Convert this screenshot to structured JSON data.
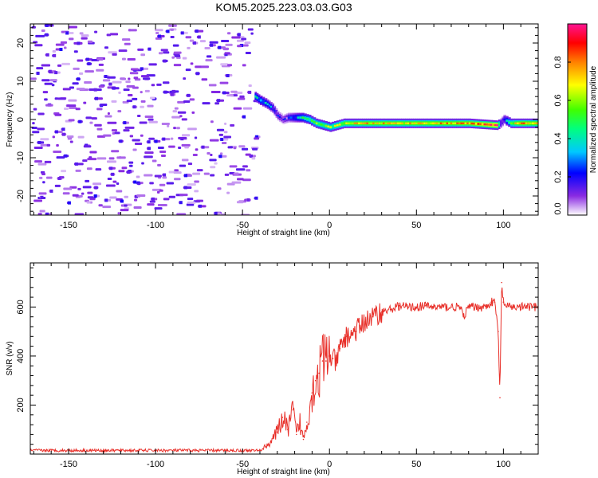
{
  "title": "KOM5.2025.223.03.03.G03",
  "chart_data": [
    {
      "type": "heatmap",
      "xlabel": "Height of straight line (km)",
      "ylabel": "Frequency (Hz)",
      "xlim": [
        -172,
        120
      ],
      "ylim": [
        -25,
        25
      ],
      "xticks": [
        -150,
        -100,
        -50,
        0,
        50,
        100
      ],
      "yticks": [
        -20,
        -10,
        0,
        10,
        20
      ],
      "colorbar": {
        "label": "Normalized spectral amplitude",
        "range": [
          0,
          1
        ],
        "ticks": [
          "0.0",
          "0.2",
          "0.4",
          "0.6",
          "0.8"
        ]
      },
      "noise_region": {
        "x_range": [
          -172,
          -43
        ],
        "amplitude_range": [
          0.05,
          0.25
        ]
      },
      "signal_track": {
        "x": [
          -43,
          -40,
          -36,
          -33,
          -30,
          -27,
          -24,
          -20,
          -16,
          -12,
          -8,
          -4,
          0,
          4,
          8,
          20,
          40,
          60,
          80,
          96,
          98,
          100,
          104,
          110,
          120
        ],
        "frequency": [
          6,
          5,
          4,
          3,
          1,
          0,
          0.5,
          0.5,
          0.5,
          0,
          -1,
          -1.5,
          -2,
          -1.5,
          -1,
          -1,
          -1,
          -1,
          -1,
          -1.5,
          -1,
          0,
          -1,
          -1,
          -1
        ],
        "amplitude": [
          0.35,
          0.35,
          0.3,
          0.25,
          0.15,
          0.1,
          0.2,
          0.3,
          0.4,
          0.5,
          0.55,
          0.55,
          0.55,
          0.6,
          0.65,
          0.7,
          0.7,
          0.72,
          0.75,
          0.9,
          0.2,
          0.2,
          0.6,
          0.75,
          0.7
        ]
      }
    },
    {
      "type": "line",
      "xlabel": "Height of straight line (km)",
      "ylabel": "SNR (v/v)",
      "xlim": [
        -172,
        120
      ],
      "ylim": [
        0,
        780
      ],
      "xticks": [
        -150,
        -100,
        -50,
        0,
        50,
        100
      ],
      "yticks": [
        200,
        400,
        600
      ],
      "series": [
        {
          "name": "SNR",
          "color": "#e8302a",
          "x": [
            -172,
            -150,
            -120,
            -100,
            -80,
            -60,
            -45,
            -40,
            -35,
            -30,
            -27,
            -24,
            -21,
            -19,
            -17,
            -15,
            -13,
            -10,
            -8,
            -6,
            -4,
            -2,
            0,
            2,
            4,
            6,
            8,
            10,
            15,
            20,
            25,
            30,
            35,
            40,
            45,
            50,
            55,
            60,
            65,
            70,
            75,
            77,
            80,
            85,
            90,
            93,
            95,
            97,
            98,
            99,
            100,
            102,
            105,
            110,
            115,
            120
          ],
          "y": [
            15,
            15,
            15,
            15,
            15,
            15,
            15,
            15,
            40,
            90,
            150,
            100,
            180,
            80,
            130,
            60,
            130,
            250,
            300,
            330,
            380,
            380,
            400,
            390,
            370,
            430,
            460,
            480,
            500,
            540,
            560,
            580,
            590,
            605,
            600,
            600,
            605,
            600,
            600,
            600,
            600,
            560,
            600,
            600,
            600,
            620,
            620,
            500,
            230,
            700,
            620,
            600,
            600,
            600,
            600,
            600
          ]
        }
      ]
    }
  ]
}
